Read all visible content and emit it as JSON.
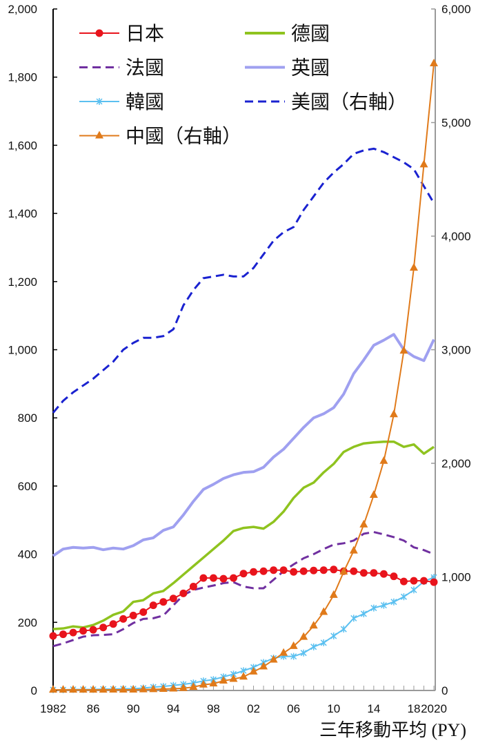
{
  "chart_data": {
    "type": "line",
    "title": "",
    "xlabel": "三年移動平均 (PY)",
    "ylabel_left": "",
    "ylabel_right": "",
    "x": [
      1982,
      1983,
      1984,
      1985,
      1986,
      1987,
      1988,
      1989,
      1990,
      1991,
      1992,
      1993,
      1994,
      1995,
      1996,
      1997,
      1998,
      1999,
      2000,
      2001,
      2002,
      2003,
      2004,
      2005,
      2006,
      2007,
      2008,
      2009,
      2010,
      2011,
      2012,
      2013,
      2014,
      2015,
      2016,
      2017,
      2018,
      2019,
      2020
    ],
    "x_tick_labels": [
      "1982",
      "86",
      "90",
      "94",
      "98",
      "02",
      "06",
      "10",
      "14",
      "18",
      "2020"
    ],
    "x_tick_values": [
      1982,
      1986,
      1990,
      1994,
      1998,
      2002,
      2006,
      2010,
      2014,
      2018,
      2020
    ],
    "ylim_left": [
      0,
      2000
    ],
    "ylim_right": [
      0,
      6000
    ],
    "y_left_ticks": [
      "0",
      "200",
      "400",
      "600",
      "800",
      "1,000",
      "1,200",
      "1,400",
      "1,600",
      "1,800",
      "2,000"
    ],
    "y_right_ticks": [
      "0",
      "1,000",
      "2,000",
      "3,000",
      "4,000",
      "5,000",
      "6,000"
    ],
    "grid": false,
    "legend_placement": "top-left",
    "series": [
      {
        "name": "日本",
        "axis": "left",
        "color": "#e8141c",
        "style": "solid",
        "marker": "circle",
        "values": [
          160,
          165,
          170,
          175,
          178,
          185,
          195,
          210,
          220,
          230,
          250,
          260,
          270,
          285,
          305,
          330,
          330,
          328,
          330,
          343,
          348,
          350,
          353,
          353,
          348,
          350,
          352,
          353,
          355,
          350,
          350,
          345,
          345,
          342,
          335,
          320,
          322,
          322,
          318
        ]
      },
      {
        "name": "德國",
        "axis": "left",
        "color": "#8fc31f",
        "style": "solid",
        "marker": "none",
        "values": [
          180,
          182,
          188,
          185,
          192,
          205,
          222,
          232,
          260,
          265,
          285,
          292,
          315,
          340,
          365,
          390,
          415,
          440,
          468,
          477,
          480,
          475,
          495,
          525,
          565,
          595,
          610,
          640,
          665,
          700,
          715,
          725,
          728,
          730,
          730,
          715,
          722,
          695,
          715
        ]
      },
      {
        "name": "法國",
        "axis": "left",
        "color": "#7030a0",
        "style": "dashed",
        "marker": "none",
        "values": [
          130,
          138,
          148,
          158,
          162,
          163,
          165,
          180,
          198,
          210,
          212,
          220,
          250,
          280,
          295,
          302,
          308,
          315,
          318,
          305,
          300,
          300,
          325,
          350,
          370,
          388,
          400,
          415,
          428,
          432,
          440,
          460,
          465,
          458,
          450,
          440,
          420,
          412,
          400
        ]
      },
      {
        "name": "英國",
        "axis": "left",
        "color": "#9fa0f0",
        "style": "solid",
        "marker": "none",
        "values": [
          395,
          415,
          420,
          418,
          420,
          413,
          418,
          415,
          425,
          442,
          448,
          470,
          480,
          515,
          555,
          590,
          605,
          622,
          633,
          640,
          642,
          655,
          685,
          708,
          740,
          772,
          800,
          812,
          830,
          870,
          930,
          970,
          1013,
          1028,
          1045,
          1000,
          980,
          968,
          1030
        ]
      },
      {
        "name": "韓國",
        "axis": "left",
        "color": "#5bc0f0",
        "style": "solid",
        "marker": "x",
        "values": [
          2,
          2,
          3,
          3,
          3,
          4,
          4,
          5,
          5,
          7,
          10,
          12,
          15,
          18,
          22,
          28,
          32,
          40,
          48,
          58,
          68,
          82,
          95,
          100,
          100,
          110,
          128,
          140,
          160,
          180,
          212,
          225,
          242,
          250,
          260,
          275,
          295,
          320,
          332
        ]
      },
      {
        "name": "美國（右軸）",
        "axis": "right",
        "color": "#1a22d0",
        "style": "dashed",
        "marker": "none",
        "values": [
          2445,
          2550,
          2625,
          2685,
          2745,
          2820,
          2895,
          3000,
          3060,
          3105,
          3105,
          3120,
          3180,
          3390,
          3525,
          3630,
          3645,
          3660,
          3645,
          3645,
          3720,
          3840,
          3960,
          4035,
          4080,
          4230,
          4350,
          4470,
          4560,
          4635,
          4725,
          4755,
          4770,
          4740,
          4695,
          4650,
          4590,
          4440,
          4290
        ]
      },
      {
        "name": "中國（右軸）",
        "axis": "right",
        "color": "#e07a1a",
        "style": "solid",
        "marker": "triangle",
        "values": [
          5,
          5,
          5,
          5,
          5,
          5,
          6,
          6,
          6,
          8,
          10,
          12,
          15,
          20,
          30,
          50,
          60,
          85,
          100,
          120,
          165,
          210,
          270,
          330,
          390,
          470,
          570,
          690,
          840,
          1045,
          1230,
          1460,
          1720,
          2020,
          2430,
          2990,
          3720,
          4630,
          5520
        ]
      }
    ]
  }
}
